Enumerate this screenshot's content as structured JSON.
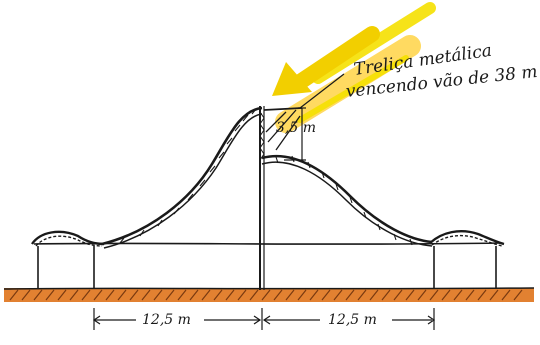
{
  "annotations": {
    "truss_note_line1": "Treliça metálica",
    "truss_note_line2": "vencendo vão de 38 m",
    "height_label": "3,5 m",
    "span_left": "12,5 m",
    "span_right": "12,5 m"
  },
  "colors": {
    "ink": "#1a1a1a",
    "ground": "#e0761f",
    "sunlight": "#f5e000",
    "sunlight_glow": "#ffd13a"
  },
  "icons": {
    "sun_arrow": "arrow-icon"
  }
}
